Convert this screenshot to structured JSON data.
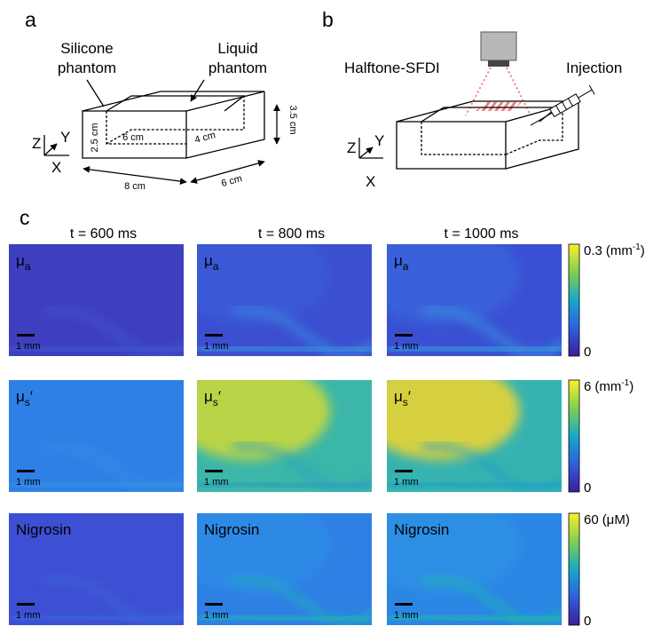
{
  "panel_a": {
    "label": "a",
    "silicone": [
      "Silicone",
      "phantom"
    ],
    "liquid": [
      "Liquid",
      "phantom"
    ],
    "axes": {
      "z": "Z",
      "y": "Y",
      "x": "X"
    },
    "dims": {
      "height_inner": "2.5 cm",
      "length_inner": "6 cm",
      "width_inner": "4 cm",
      "height": "3.5 cm",
      "length": "8 cm",
      "width": "6 cm"
    }
  },
  "panel_b": {
    "label": "b",
    "imager": "Halftone-SFDI",
    "injection": "Injection",
    "axes": {
      "z": "Z",
      "y": "Y",
      "x": "X"
    }
  },
  "panel_c": {
    "label": "c",
    "columns": [
      "t = 600 ms",
      "t = 800 ms",
      "t = 1000 ms"
    ],
    "scale_bar": "1 mm",
    "rows": [
      {
        "symbol": "μ",
        "subscript": "a",
        "colorbar": {
          "max": 0.3,
          "unit": "(mm",
          "unit_superscript": "-1",
          "unit_close": ")",
          "min": 0
        }
      },
      {
        "symbol": "μ",
        "subscript": "s",
        "suffix": "′",
        "colorbar": {
          "max": 6,
          "unit": "(mm",
          "unit_superscript": "-1",
          "unit_close": ")",
          "min": 0
        }
      },
      {
        "name": "Nigrosin",
        "colorbar": {
          "max": 60,
          "unit": "(μM)",
          "min": 0
        }
      }
    ]
  }
}
